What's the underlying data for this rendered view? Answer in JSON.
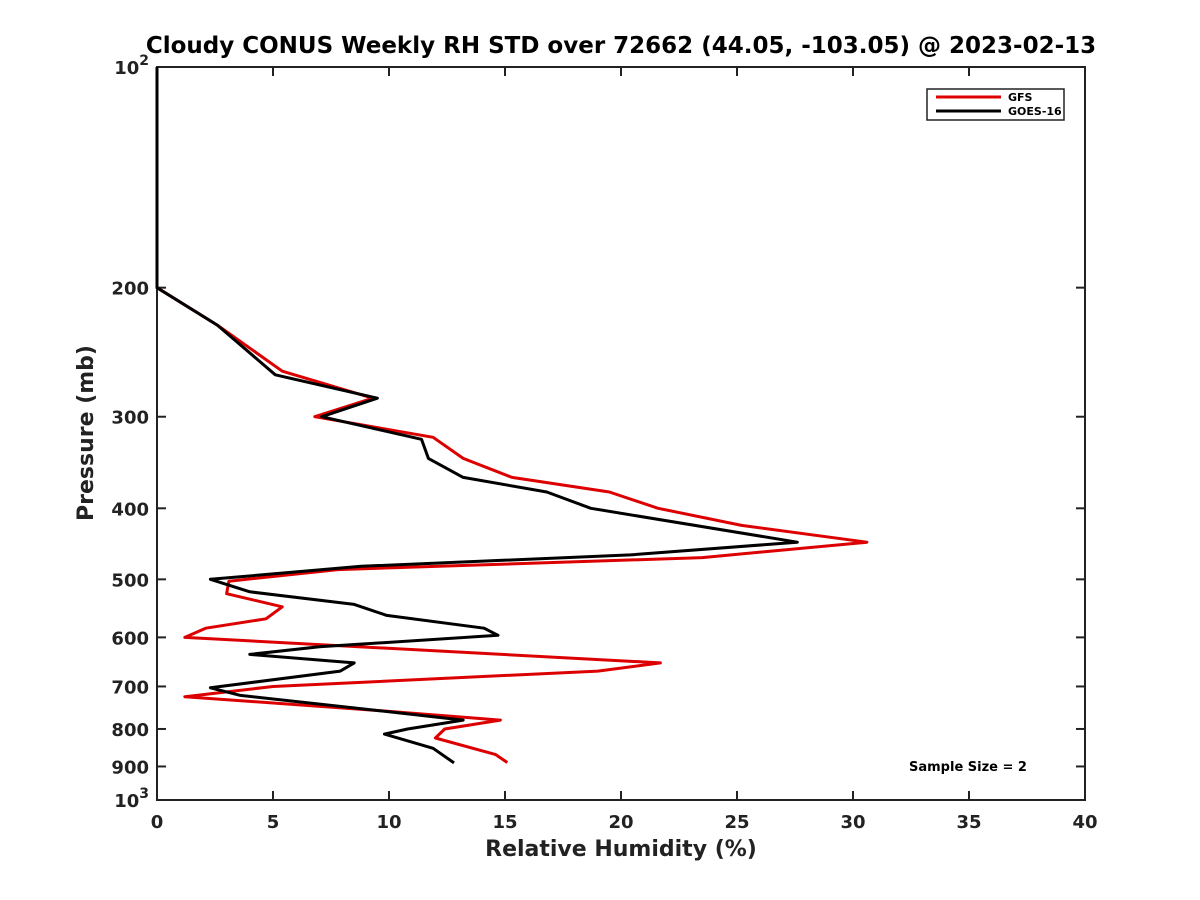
{
  "chart_data": {
    "type": "line",
    "title": "Cloudy CONUS Weekly RH STD over 72662 (44.05, -103.05) @ 2023-02-13",
    "xlabel": "Relative Humidity (%)",
    "ylabel": "Pressure (mb)",
    "xlim": [
      0,
      40
    ],
    "ylim": [
      100,
      1000
    ],
    "y_scale": "log",
    "y_inverted": true,
    "x_ticks": [
      "0",
      "5",
      "10",
      "15",
      "20",
      "25",
      "30",
      "35",
      "40"
    ],
    "y_ticks": [
      {
        "value": 100,
        "label": "10",
        "sup": "2"
      },
      {
        "value": 200,
        "label": "200"
      },
      {
        "value": 300,
        "label": "300"
      },
      {
        "value": 400,
        "label": "400"
      },
      {
        "value": 500,
        "label": "500"
      },
      {
        "value": 600,
        "label": "600"
      },
      {
        "value": 700,
        "label": "700"
      },
      {
        "value": 800,
        "label": "800"
      },
      {
        "value": 900,
        "label": "900"
      },
      {
        "value": 1000,
        "label": "10",
        "sup": "3"
      }
    ],
    "grid": false,
    "legend_position": "top-right",
    "annotation": "Sample Size = 2",
    "series": [
      {
        "name": "GFS",
        "color": "#dd0000",
        "points": [
          [
            0.0,
            100
          ],
          [
            0.0,
            150
          ],
          [
            0.0,
            200
          ],
          [
            2.6,
            225
          ],
          [
            5.4,
            260
          ],
          [
            9.3,
            283
          ],
          [
            6.8,
            300
          ],
          [
            11.9,
            320
          ],
          [
            13.2,
            342
          ],
          [
            15.3,
            363
          ],
          [
            19.5,
            380
          ],
          [
            21.6,
            400
          ],
          [
            25.2,
            422
          ],
          [
            30.6,
            445
          ],
          [
            23.5,
            467
          ],
          [
            7.8,
            485
          ],
          [
            3.1,
            503
          ],
          [
            3.0,
            523
          ],
          [
            5.4,
            545
          ],
          [
            4.7,
            566
          ],
          [
            2.1,
            583
          ],
          [
            1.2,
            600
          ],
          [
            21.7,
            650
          ],
          [
            19.0,
            667
          ],
          [
            5.0,
            700
          ],
          [
            1.2,
            723
          ],
          [
            9.5,
            755
          ],
          [
            14.8,
            778
          ],
          [
            12.4,
            800
          ],
          [
            12.0,
            823
          ],
          [
            14.6,
            867
          ],
          [
            15.1,
            889
          ]
        ]
      },
      {
        "name": "GOES-16",
        "color": "#000000",
        "points": [
          [
            0.0,
            100
          ],
          [
            0.0,
            150
          ],
          [
            0.0,
            200
          ],
          [
            2.6,
            225
          ],
          [
            5.1,
            263
          ],
          [
            9.5,
            283
          ],
          [
            7.1,
            300
          ],
          [
            11.4,
            322
          ],
          [
            11.7,
            342
          ],
          [
            13.2,
            363
          ],
          [
            16.8,
            380
          ],
          [
            18.7,
            400
          ],
          [
            27.6,
            445
          ],
          [
            20.4,
            463
          ],
          [
            8.8,
            480
          ],
          [
            2.3,
            500
          ],
          [
            4.0,
            520
          ],
          [
            8.5,
            541
          ],
          [
            9.9,
            560
          ],
          [
            14.1,
            583
          ],
          [
            14.7,
            596
          ],
          [
            7.0,
            618
          ],
          [
            4.0,
            633
          ],
          [
            8.5,
            650
          ],
          [
            7.9,
            667
          ],
          [
            2.3,
            703
          ],
          [
            3.6,
            720
          ],
          [
            9.5,
            755
          ],
          [
            13.2,
            778
          ],
          [
            10.8,
            800
          ],
          [
            9.8,
            813
          ],
          [
            11.9,
            850
          ],
          [
            12.8,
            890
          ]
        ]
      }
    ]
  }
}
